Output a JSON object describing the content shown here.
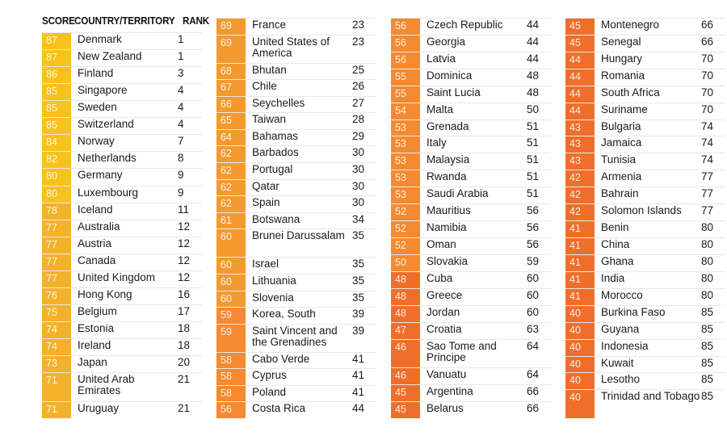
{
  "header": {
    "score_label": "SCORE",
    "country_label": "COUNTRY/TERRITORY",
    "rank_label": "RANK"
  },
  "colors": {
    "score_90s": "#f2bd1d",
    "score_80s": "#f8c21b",
    "score_70s": "#f4b12a",
    "score_60s": "#f39a2f",
    "score_50s": "#f58a31",
    "score_40s": "#ef6f2a"
  },
  "chart_data": {
    "type": "table",
    "columns": [
      "SCORE",
      "COUNTRY/TERRITORY",
      "RANK"
    ],
    "rows": [
      {
        "score": 87,
        "country": "Denmark",
        "rank": 1
      },
      {
        "score": 87,
        "country": "New Zealand",
        "rank": 1
      },
      {
        "score": 86,
        "country": "Finland",
        "rank": 3
      },
      {
        "score": 85,
        "country": "Singapore",
        "rank": 4
      },
      {
        "score": 85,
        "country": "Sweden",
        "rank": 4
      },
      {
        "score": 85,
        "country": "Switzerland",
        "rank": 4
      },
      {
        "score": 84,
        "country": "Norway",
        "rank": 7
      },
      {
        "score": 82,
        "country": "Netherlands",
        "rank": 8
      },
      {
        "score": 80,
        "country": "Germany",
        "rank": 9
      },
      {
        "score": 80,
        "country": "Luxembourg",
        "rank": 9
      },
      {
        "score": 78,
        "country": "Iceland",
        "rank": 11
      },
      {
        "score": 77,
        "country": "Australia",
        "rank": 12
      },
      {
        "score": 77,
        "country": "Austria",
        "rank": 12
      },
      {
        "score": 77,
        "country": "Canada",
        "rank": 12
      },
      {
        "score": 77,
        "country": "United Kingdom",
        "rank": 12
      },
      {
        "score": 76,
        "country": "Hong Kong",
        "rank": 16
      },
      {
        "score": 75,
        "country": "Belgium",
        "rank": 17
      },
      {
        "score": 74,
        "country": "Estonia",
        "rank": 18
      },
      {
        "score": 74,
        "country": "Ireland",
        "rank": 18
      },
      {
        "score": 73,
        "country": "Japan",
        "rank": 20
      },
      {
        "score": 71,
        "country": "United Arab Emirates",
        "rank": 21
      },
      {
        "score": 71,
        "country": "Uruguay",
        "rank": 21
      },
      {
        "score": 69,
        "country": "France",
        "rank": 23
      },
      {
        "score": 69,
        "country": "United States of America",
        "rank": 23
      },
      {
        "score": 68,
        "country": "Bhutan",
        "rank": 25
      },
      {
        "score": 67,
        "country": "Chile",
        "rank": 26
      },
      {
        "score": 66,
        "country": "Seychelles",
        "rank": 27
      },
      {
        "score": 65,
        "country": "Taiwan",
        "rank": 28
      },
      {
        "score": 64,
        "country": "Bahamas",
        "rank": 29
      },
      {
        "score": 62,
        "country": "Barbados",
        "rank": 30
      },
      {
        "score": 62,
        "country": "Portugal",
        "rank": 30
      },
      {
        "score": 62,
        "country": "Qatar",
        "rank": 30
      },
      {
        "score": 62,
        "country": "Spain",
        "rank": 30
      },
      {
        "score": 61,
        "country": "Botswana",
        "rank": 34
      },
      {
        "score": 60,
        "country": "Brunei Darussalam",
        "rank": 35
      },
      {
        "score": 60,
        "country": "Israel",
        "rank": 35
      },
      {
        "score": 60,
        "country": "Lithuania",
        "rank": 35
      },
      {
        "score": 60,
        "country": "Slovenia",
        "rank": 35
      },
      {
        "score": 59,
        "country": "Korea, South",
        "rank": 39
      },
      {
        "score": 59,
        "country": "Saint Vincent and the Grenadines",
        "rank": 39
      },
      {
        "score": 58,
        "country": "Cabo Verde",
        "rank": 41
      },
      {
        "score": 58,
        "country": "Cyprus",
        "rank": 41
      },
      {
        "score": 58,
        "country": "Poland",
        "rank": 41
      },
      {
        "score": 56,
        "country": "Costa Rica",
        "rank": 44
      },
      {
        "score": 56,
        "country": "Czech Republic",
        "rank": 44
      },
      {
        "score": 56,
        "country": "Georgia",
        "rank": 44
      },
      {
        "score": 56,
        "country": "Latvia",
        "rank": 44
      },
      {
        "score": 55,
        "country": "Dominica",
        "rank": 48
      },
      {
        "score": 55,
        "country": "Saint Lucia",
        "rank": 48
      },
      {
        "score": 54,
        "country": "Malta",
        "rank": 50
      },
      {
        "score": 53,
        "country": "Grenada",
        "rank": 51
      },
      {
        "score": 53,
        "country": "Italy",
        "rank": 51
      },
      {
        "score": 53,
        "country": "Malaysia",
        "rank": 51
      },
      {
        "score": 53,
        "country": "Rwanda",
        "rank": 51
      },
      {
        "score": 53,
        "country": "Saudi Arabia",
        "rank": 51
      },
      {
        "score": 52,
        "country": "Mauritius",
        "rank": 56
      },
      {
        "score": 52,
        "country": "Namibia",
        "rank": 56
      },
      {
        "score": 52,
        "country": "Oman",
        "rank": 56
      },
      {
        "score": 50,
        "country": "Slovakia",
        "rank": 59
      },
      {
        "score": 48,
        "country": "Cuba",
        "rank": 60
      },
      {
        "score": 48,
        "country": "Greece",
        "rank": 60
      },
      {
        "score": 48,
        "country": "Jordan",
        "rank": 60
      },
      {
        "score": 47,
        "country": "Croatia",
        "rank": 63
      },
      {
        "score": 46,
        "country": "Sao Tome and Principe",
        "rank": 64
      },
      {
        "score": 46,
        "country": "Vanuatu",
        "rank": 64
      },
      {
        "score": 45,
        "country": "Argentina",
        "rank": 66
      },
      {
        "score": 45,
        "country": "Belarus",
        "rank": 66
      },
      {
        "score": 45,
        "country": "Montenegro",
        "rank": 66
      },
      {
        "score": 45,
        "country": "Senegal",
        "rank": 66
      },
      {
        "score": 44,
        "country": "Hungary",
        "rank": 70
      },
      {
        "score": 44,
        "country": "Romania",
        "rank": 70
      },
      {
        "score": 44,
        "country": "South Africa",
        "rank": 70
      },
      {
        "score": 44,
        "country": "Suriname",
        "rank": 70
      },
      {
        "score": 43,
        "country": "Bulgaria",
        "rank": 74
      },
      {
        "score": 43,
        "country": "Jamaica",
        "rank": 74
      },
      {
        "score": 43,
        "country": "Tunisia",
        "rank": 74
      },
      {
        "score": 42,
        "country": "Armenia",
        "rank": 77
      },
      {
        "score": 42,
        "country": "Bahrain",
        "rank": 77
      },
      {
        "score": 42,
        "country": "Solomon Islands",
        "rank": 77
      },
      {
        "score": 41,
        "country": "Benin",
        "rank": 80
      },
      {
        "score": 41,
        "country": "China",
        "rank": 80
      },
      {
        "score": 41,
        "country": "Ghana",
        "rank": 80
      },
      {
        "score": 41,
        "country": "India",
        "rank": 80
      },
      {
        "score": 41,
        "country": "Morocco",
        "rank": 80
      },
      {
        "score": 40,
        "country": "Burkina Faso",
        "rank": 85
      },
      {
        "score": 40,
        "country": "Guyana",
        "rank": 85
      },
      {
        "score": 40,
        "country": "Indonesia",
        "rank": 85
      },
      {
        "score": 40,
        "country": "Kuwait",
        "rank": 85
      },
      {
        "score": 40,
        "country": "Lesotho",
        "rank": 85
      },
      {
        "score": 40,
        "country": "Trinidad and Tobago",
        "rank": 85
      }
    ]
  }
}
